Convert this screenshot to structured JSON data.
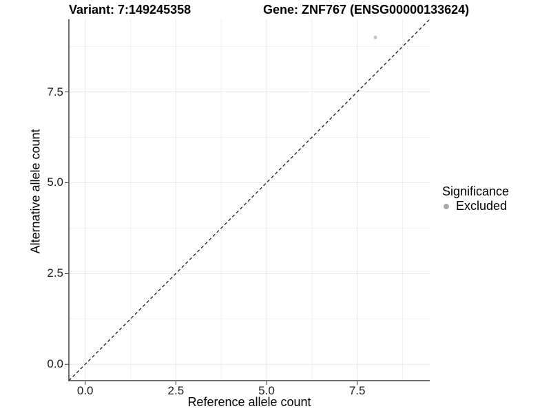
{
  "chart_data": {
    "type": "scatter",
    "title_left": "Variant: 7:149245358",
    "title_right": "Gene: ZNF767 (ENSG00000133624)",
    "xlabel": "Reference allele count",
    "ylabel": "Alternative allele count",
    "xlim": [
      -0.45,
      9.5
    ],
    "ylim": [
      -0.45,
      9.5
    ],
    "x_ticks": [
      0.0,
      2.5,
      5.0,
      7.5
    ],
    "y_ticks": [
      0.0,
      2.5,
      5.0,
      7.5
    ],
    "x_tick_labels": [
      "0.0",
      "2.5",
      "5.0",
      "7.5"
    ],
    "y_tick_labels": [
      "0.0",
      "2.5",
      "5.0",
      "7.5"
    ],
    "grid": {
      "on": true,
      "major_color": "#e7e7e7",
      "minor_color": "#f1f1f1"
    },
    "identity_line": {
      "slope": 1,
      "intercept": 0,
      "style": "dashed",
      "color": "#1a1a1a"
    },
    "points": [
      {
        "x": 8,
        "y": 9,
        "series": "Excluded",
        "color": "#c5c5c5"
      }
    ],
    "legend": {
      "title": "Significance",
      "position": "right",
      "items": [
        {
          "label": "Excluded",
          "color": "#a9a9a9"
        }
      ]
    },
    "axis_line_color": "#3f3f3f",
    "tick_mark_color": "#333333",
    "background_color": "#ffffff"
  }
}
